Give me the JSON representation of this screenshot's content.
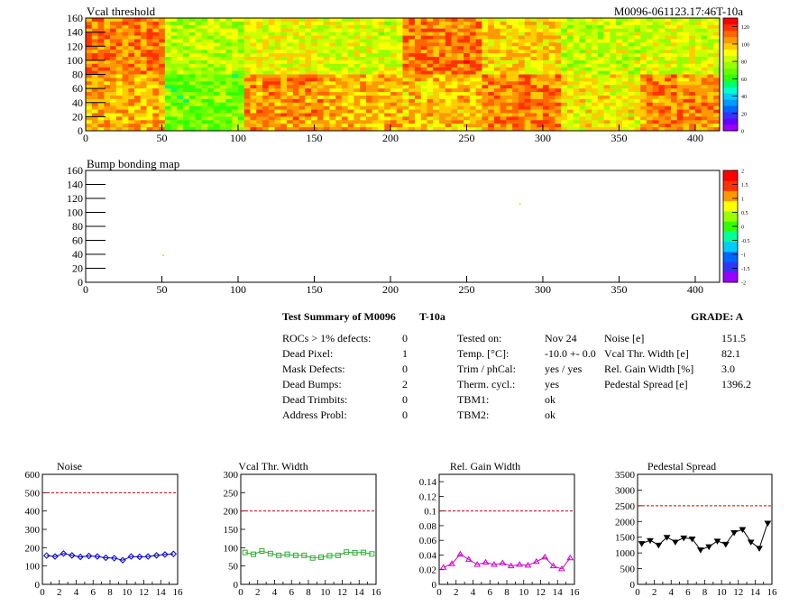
{
  "colors": {
    "axis": "#000000",
    "limit_line": "#cc0000",
    "noise_series": "#0000cc",
    "vcal_series": "#33aa33",
    "gain_series": "#cc00cc",
    "pedestal_series": "#000000"
  },
  "palette_vcal": [
    "#9900ff",
    "#6600ff",
    "#3333ff",
    "#0066ff",
    "#0099ff",
    "#00ccff",
    "#00ffcc",
    "#00ff66",
    "#33ff00",
    "#66ff00",
    "#99ff00",
    "#ccff00",
    "#ffff00",
    "#ffcc00",
    "#ff9900",
    "#ff6600",
    "#ff3300",
    "#ff0000"
  ],
  "palette_bump": [
    "#9900ff",
    "#3333ff",
    "#0066ff",
    "#00ccff",
    "#00ff99",
    "#33ff00",
    "#99ff00",
    "#ffff00",
    "#ff9900",
    "#ff3300",
    "#ff0000"
  ],
  "vcal_map": {
    "title": "Vcal threshold",
    "module_label": "M0096-061123.17:46T-10a",
    "x_ticks": [
      "0",
      "50",
      "100",
      "150",
      "200",
      "250",
      "300",
      "350",
      "400"
    ],
    "y_ticks": [
      "0",
      "20",
      "40",
      "60",
      "80",
      "100",
      "120",
      "140",
      "160"
    ],
    "z_ticks": [
      "0",
      "20",
      "40",
      "60",
      "80",
      "100",
      "120"
    ]
  },
  "bump_map": {
    "title": "Bump bonding map",
    "x_ticks": [
      "0",
      "50",
      "100",
      "150",
      "200",
      "250",
      "300",
      "350",
      "400"
    ],
    "y_ticks": [
      "0",
      "20",
      "40",
      "60",
      "80",
      "100",
      "120",
      "140",
      "160"
    ],
    "z_ticks": [
      "-2",
      "-1.5",
      "-1",
      "-0.5",
      "0",
      "0.5",
      "1",
      "1.5",
      "2"
    ]
  },
  "summary": {
    "title": "Test Summary of M0096",
    "temp_code": "T-10a",
    "grade": "GRADE:  A",
    "col1_labels": [
      "ROCs > 1% defects:",
      "Dead Pixel:",
      "Mask Defects:",
      "Dead Bumps:",
      "Dead Trimbits:",
      "Address Probl:"
    ],
    "col1_values": [
      "0",
      "1",
      "0",
      "2",
      "0",
      "0"
    ],
    "col2_labels": [
      "Tested on:",
      "Temp. [°C]:",
      "Trim / phCal:",
      "Therm. cycl.:",
      "TBM1:",
      "TBM2:"
    ],
    "col2_values": [
      "Nov 24",
      "-10.0 +- 0.0",
      "yes / yes",
      "yes",
      "ok",
      "ok"
    ],
    "col3_labels": [
      "Noise [e]",
      "Vcal Thr. Width [e]",
      "Rel. Gain Width [%]",
      "Pedestal Spread [e]"
    ],
    "col3_values": [
      "151.5",
      "82.1",
      "3.0",
      "1396.2"
    ]
  },
  "chart_data": [
    {
      "type": "heatmap",
      "title": "Vcal threshold",
      "x_range": [
        0,
        416
      ],
      "y_range": [
        0,
        160
      ],
      "z_range": [
        0,
        130
      ],
      "roc_grid": {
        "columns": 8,
        "rows": 2,
        "mean_values_top_row": [
          108,
          80,
          88,
          85,
          110,
          95,
          82,
          85
        ],
        "mean_values_bottom_row": [
          100,
          70,
          105,
          100,
          98,
          108,
          90,
          106
        ]
      }
    },
    {
      "type": "heatmap",
      "title": "Bump bonding map",
      "x_range": [
        0,
        416
      ],
      "y_range": [
        0,
        160
      ],
      "z_range": [
        -2,
        2
      ],
      "points": [
        {
          "x": 51,
          "y": 38,
          "z": 0.2
        },
        {
          "x": 285,
          "y": 112,
          "z": 0.2
        }
      ]
    },
    {
      "type": "line",
      "title": "Noise",
      "x": [
        0.5,
        1.5,
        2.5,
        3.5,
        4.5,
        5.5,
        6.5,
        7.5,
        8.5,
        9.5,
        10.5,
        11.5,
        12.5,
        13.5,
        14.5,
        15.5
      ],
      "values": [
        157,
        152,
        168,
        158,
        150,
        155,
        152,
        145,
        143,
        132,
        152,
        150,
        152,
        158,
        163,
        166
      ],
      "limit": 500,
      "xlim": [
        0,
        16
      ],
      "ylim": [
        0,
        600
      ],
      "x_ticks": [
        "0",
        "2",
        "4",
        "6",
        "8",
        "10",
        "12",
        "14",
        "16"
      ],
      "y_ticks": [
        "0",
        "100",
        "200",
        "300",
        "400",
        "500",
        "600"
      ]
    },
    {
      "type": "line",
      "title": "Vcal Thr. Width",
      "x": [
        0.5,
        1.5,
        2.5,
        3.5,
        4.5,
        5.5,
        6.5,
        7.5,
        8.5,
        9.5,
        10.5,
        11.5,
        12.5,
        13.5,
        14.5,
        15.5
      ],
      "values": [
        87,
        82,
        91,
        84,
        79,
        82,
        79,
        79,
        72,
        74,
        78,
        79,
        88,
        86,
        87,
        83
      ],
      "limit": 200,
      "xlim": [
        0,
        16
      ],
      "ylim": [
        0,
        300
      ],
      "x_ticks": [
        "0",
        "2",
        "4",
        "6",
        "8",
        "10",
        "12",
        "14",
        "16"
      ],
      "y_ticks": [
        "0",
        "50",
        "100",
        "150",
        "200",
        "250",
        "300"
      ]
    },
    {
      "type": "line",
      "title": "Rel. Gain Width",
      "x": [
        0.5,
        1.5,
        2.5,
        3.5,
        4.5,
        5.5,
        6.5,
        7.5,
        8.5,
        9.5,
        10.5,
        11.5,
        12.5,
        13.5,
        14.5,
        15.5
      ],
      "values": [
        0.023,
        0.028,
        0.041,
        0.034,
        0.027,
        0.03,
        0.027,
        0.029,
        0.025,
        0.027,
        0.026,
        0.031,
        0.037,
        0.025,
        0.021,
        0.036
      ],
      "limit": 0.1,
      "xlim": [
        0,
        16
      ],
      "ylim": [
        0,
        0.15
      ],
      "x_ticks": [
        "0",
        "2",
        "4",
        "6",
        "8",
        "10",
        "12",
        "14",
        "16"
      ],
      "y_ticks": [
        "0",
        "0.02",
        "0.04",
        "0.06",
        "0.08",
        "0.1",
        "0.12",
        "0.14"
      ]
    },
    {
      "type": "line",
      "title": "Pedestal Spread",
      "x": [
        0.5,
        1.5,
        2.5,
        3.5,
        4.5,
        5.5,
        6.5,
        7.5,
        8.5,
        9.5,
        10.5,
        11.5,
        12.5,
        13.5,
        14.5,
        15.5
      ],
      "values": [
        1300,
        1400,
        1250,
        1500,
        1350,
        1480,
        1450,
        1100,
        1200,
        1380,
        1280,
        1650,
        1750,
        1350,
        1150,
        1950
      ],
      "limit": 2500,
      "xlim": [
        0,
        16
      ],
      "ylim": [
        0,
        3500
      ],
      "x_ticks": [
        "0",
        "2",
        "4",
        "6",
        "8",
        "10",
        "12",
        "14",
        "16"
      ],
      "y_ticks": [
        "0",
        "500",
        "1000",
        "1500",
        "2000",
        "2500",
        "3000",
        "3500"
      ]
    }
  ]
}
